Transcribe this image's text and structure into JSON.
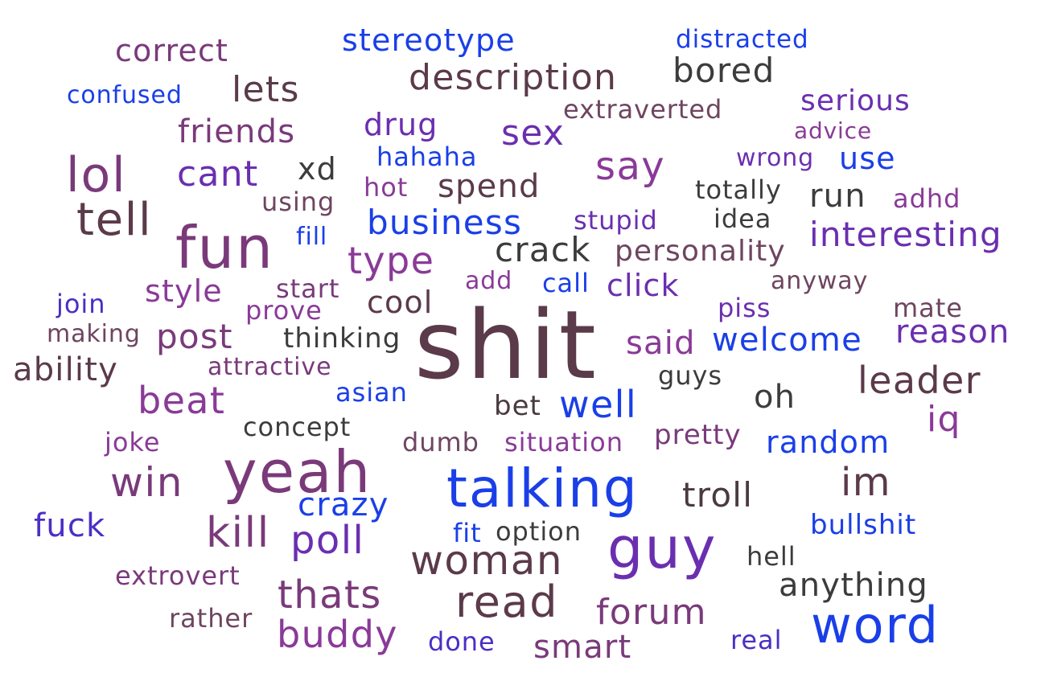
{
  "words": [
    "shit",
    "fun",
    "yeah",
    "talking",
    "guy",
    "lol",
    "tell",
    "word",
    "read",
    "woman",
    "description",
    "stereotype",
    "correct",
    "distracted",
    "bored",
    "lets",
    "confused",
    "extraverted",
    "serious",
    "friends",
    "drug",
    "sex",
    "advice",
    "cant",
    "xd",
    "say",
    "hahaha",
    "wrong",
    "use",
    "using",
    "hot",
    "spend",
    "totally",
    "run",
    "adhd",
    "business",
    "stupid",
    "idea",
    "fill",
    "interesting",
    "crack",
    "personality",
    "type",
    "style",
    "start",
    "add",
    "call",
    "click",
    "anyway",
    "join",
    "prove",
    "cool",
    "piss",
    "mate",
    "making",
    "post",
    "thinking",
    "said",
    "welcome",
    "reason",
    "ability",
    "attractive",
    "guys",
    "leader",
    "beat",
    "asian",
    "bet",
    "well",
    "oh",
    "iq",
    "concept",
    "joke",
    "dumb",
    "situation",
    "pretty",
    "random",
    "win",
    "im",
    "troll",
    "crazy",
    "fuck",
    "kill",
    "poll",
    "fit",
    "option",
    "bullshit",
    "hell",
    "extrovert",
    "anything",
    "thats",
    "rather",
    "buddy",
    "done",
    "smart",
    "forum",
    "real"
  ],
  "colors": {
    "blue": "#1a3fe8",
    "indigo": "#4b2fc4",
    "violet": "#6a2fb0",
    "purple": "#8a3a98",
    "mauve": "#6e4560",
    "brown": "#5b3a4a",
    "dark": "#3c3c3c"
  }
}
